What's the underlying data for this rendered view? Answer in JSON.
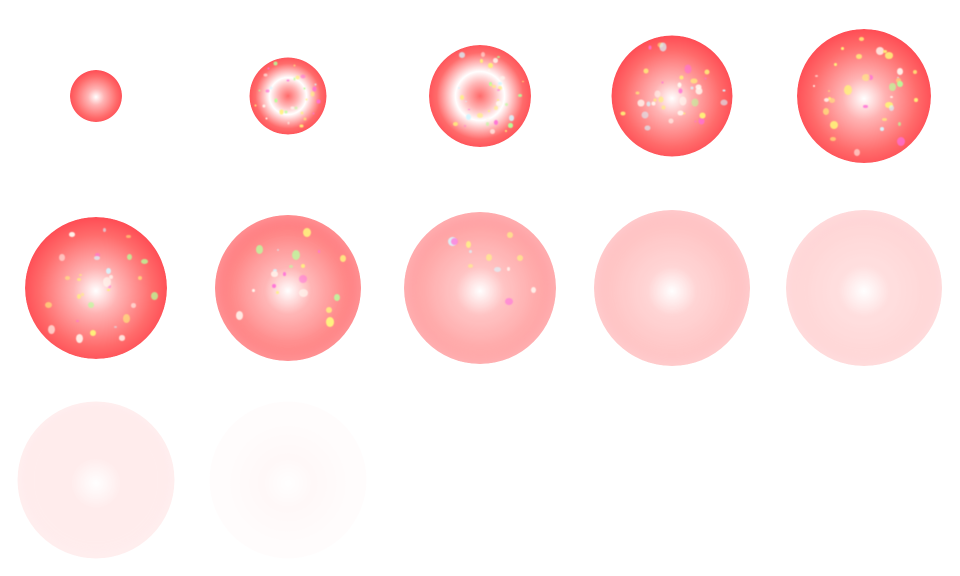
{
  "sprite_sheet": {
    "name": "",
    "background": "#ffffff",
    "columns": 5,
    "rows": 3,
    "frames": [
      {
        "index": 1,
        "size": 0.27,
        "red": 1.0,
        "opacity": 1.0,
        "sparkle": 0.0,
        "hollow": false
      },
      {
        "index": 2,
        "size": 0.4,
        "red": 1.0,
        "opacity": 1.0,
        "sparkle": 1.0,
        "hollow": true
      },
      {
        "index": 3,
        "size": 0.53,
        "red": 1.0,
        "opacity": 1.0,
        "sparkle": 0.95,
        "hollow": true
      },
      {
        "index": 4,
        "size": 0.63,
        "red": 1.0,
        "opacity": 1.0,
        "sparkle": 0.8,
        "hollow": false
      },
      {
        "index": 5,
        "size": 0.7,
        "red": 1.0,
        "opacity": 1.0,
        "sparkle": 0.7,
        "hollow": false
      },
      {
        "index": 6,
        "size": 0.74,
        "red": 1.0,
        "opacity": 1.0,
        "sparkle": 0.55,
        "hollow": false
      },
      {
        "index": 7,
        "size": 0.76,
        "red": 0.85,
        "opacity": 0.95,
        "sparkle": 0.3,
        "hollow": false
      },
      {
        "index": 8,
        "size": 0.79,
        "red": 0.65,
        "opacity": 0.9,
        "sparkle": 0.12,
        "hollow": false
      },
      {
        "index": 9,
        "size": 0.81,
        "red": 0.45,
        "opacity": 0.85,
        "sparkle": 0.0,
        "hollow": false
      },
      {
        "index": 10,
        "size": 0.81,
        "red": 0.35,
        "opacity": 0.75,
        "sparkle": 0.0,
        "hollow": false
      },
      {
        "index": 11,
        "size": 0.82,
        "red": 0.2,
        "opacity": 0.6,
        "sparkle": 0.0,
        "hollow": false
      },
      {
        "index": 12,
        "size": 0.82,
        "red": 0.05,
        "opacity": 0.35,
        "sparkle": 0.0,
        "hollow": false
      }
    ],
    "colors": {
      "core_red": "#ff1a2e",
      "mid_red": "#ff6b6b",
      "highlight": "#ffffff",
      "spark_yellow": "#fff27a",
      "spark_magenta": "#ff6fd8",
      "spark_green": "#b8ff9a",
      "spark_cyan": "#d6f6ff",
      "spark_white": "#fff8f0"
    }
  }
}
